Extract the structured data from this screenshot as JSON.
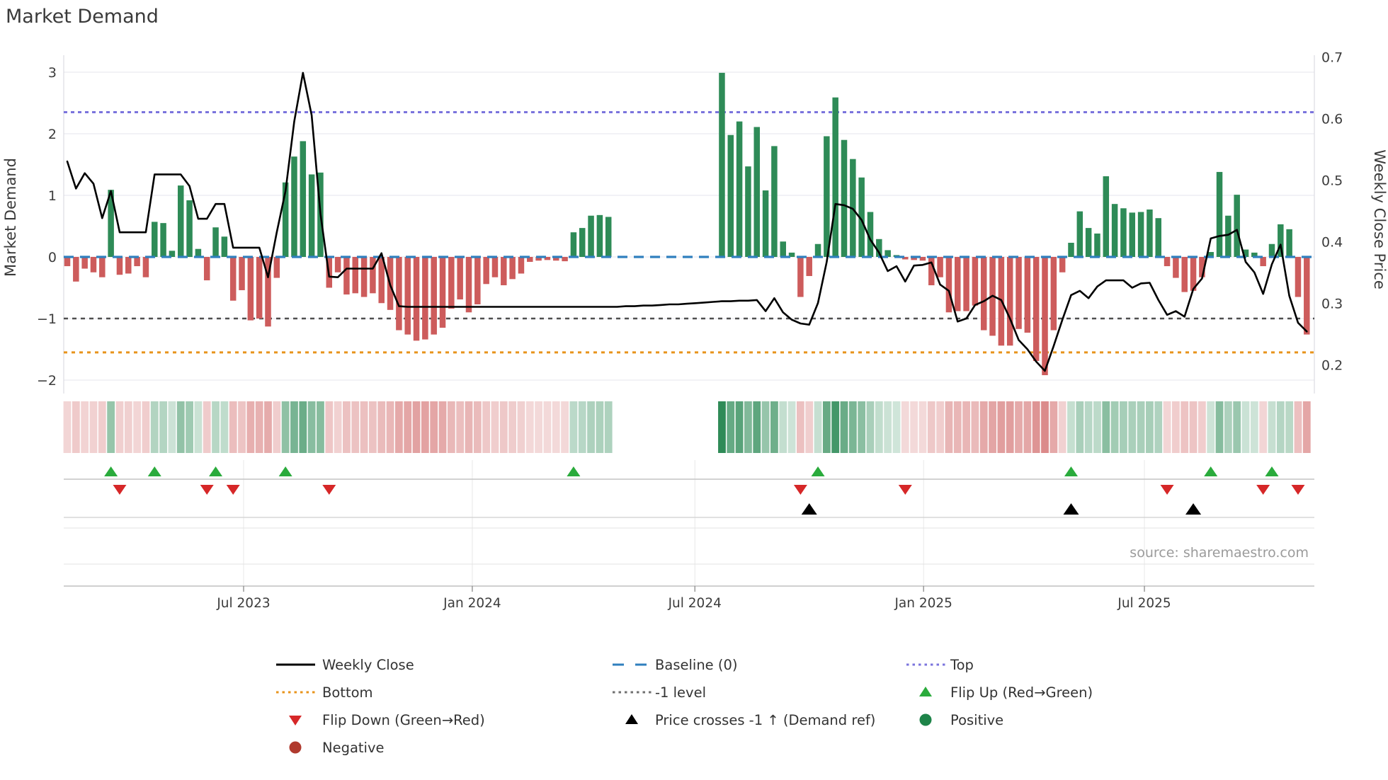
{
  "title": "Market Demand",
  "source": "source: sharemaestro.com",
  "axes": {
    "left": {
      "label": "Market Demand",
      "ticks": [
        3,
        2,
        1,
        0,
        -1,
        -2
      ]
    },
    "right": {
      "label": "Weekly Close Price",
      "ticks": [
        0.7,
        0.6,
        0.5,
        0.4,
        0.3,
        0.2
      ]
    },
    "x": {
      "ticks": [
        {
          "label": "Jul 2023",
          "week": 20.2
        },
        {
          "label": "Jan 2024",
          "week": 46.4
        },
        {
          "label": "Jul 2024",
          "week": 71.9
        },
        {
          "label": "Jan 2025",
          "week": 98.1
        },
        {
          "label": "Jul 2025",
          "week": 123.4
        }
      ]
    }
  },
  "chart_data": {
    "type": "combo-bar-line",
    "x_unit": "week_index",
    "weeks": 143,
    "grid": "horizontal-only",
    "series": [
      {
        "name": "Market Demand",
        "type": "bar",
        "axis": "left",
        "values": [
          -0.15,
          -0.4,
          -0.19,
          -0.25,
          -0.33,
          1.09,
          -0.29,
          -0.27,
          -0.15,
          -0.33,
          0.57,
          0.55,
          0.1,
          1.16,
          0.92,
          0.13,
          -0.38,
          0.48,
          0.33,
          -0.71,
          -0.54,
          -1.03,
          -1.0,
          -1.13,
          -0.34,
          1.21,
          1.63,
          1.88,
          1.34,
          1.37,
          -0.5,
          -0.25,
          -0.61,
          -0.59,
          -0.65,
          -0.59,
          -0.75,
          -0.86,
          -1.19,
          -1.26,
          -1.36,
          -1.34,
          -1.26,
          -1.15,
          -0.84,
          -0.69,
          -0.9,
          -0.77,
          -0.44,
          -0.33,
          -0.46,
          -0.36,
          -0.27,
          -0.08,
          -0.06,
          -0.05,
          -0.06,
          -0.07,
          0.4,
          0.47,
          0.67,
          0.68,
          0.65,
          null,
          null,
          null,
          null,
          null,
          null,
          null,
          null,
          null,
          null,
          null,
          null,
          2.99,
          1.98,
          2.2,
          1.47,
          2.11,
          1.08,
          1.8,
          0.25,
          0.07,
          -0.65,
          -0.31,
          0.21,
          1.96,
          2.59,
          1.9,
          1.59,
          1.29,
          0.73,
          0.29,
          0.11,
          0.03,
          -0.04,
          -0.05,
          -0.06,
          -0.46,
          -0.33,
          -0.9,
          -0.88,
          -0.88,
          -0.79,
          -1.19,
          -1.28,
          -1.44,
          -1.44,
          -1.17,
          -1.23,
          -1.69,
          -1.92,
          -1.19,
          -0.25,
          0.23,
          0.74,
          0.47,
          0.38,
          1.31,
          0.86,
          0.79,
          0.72,
          0.73,
          0.77,
          0.63,
          -0.15,
          -0.34,
          -0.57,
          -0.55,
          -0.33,
          0.08,
          1.38,
          0.67,
          1.01,
          0.12,
          0.07,
          -0.15,
          0.21,
          0.53,
          0.45,
          -0.65,
          -1.26
        ]
      },
      {
        "name": "Weekly Close",
        "type": "line",
        "axis": "right",
        "values": [
          0.53,
          0.486,
          0.511,
          0.494,
          0.438,
          0.482,
          0.415,
          0.415,
          0.415,
          0.415,
          0.509,
          0.509,
          0.509,
          0.509,
          0.49,
          0.437,
          0.437,
          0.461,
          0.461,
          0.39,
          0.39,
          0.39,
          0.39,
          0.342,
          0.415,
          0.482,
          0.595,
          0.674,
          0.605,
          0.445,
          0.343,
          0.342,
          0.356,
          0.356,
          0.356,
          0.356,
          0.381,
          0.329,
          0.295,
          0.294,
          0.294,
          0.294,
          0.294,
          0.294,
          0.294,
          0.294,
          0.294,
          0.294,
          0.294,
          0.294,
          0.294,
          0.294,
          0.294,
          0.294,
          0.294,
          0.294,
          0.294,
          0.294,
          0.294,
          0.294,
          0.294,
          0.294,
          0.294,
          0.294,
          0.295,
          0.295,
          0.296,
          0.296,
          0.297,
          0.298,
          0.298,
          0.299,
          0.3,
          0.301,
          0.302,
          0.303,
          0.303,
          0.304,
          0.304,
          0.305,
          0.287,
          0.308,
          0.285,
          0.273,
          0.267,
          0.265,
          0.3,
          0.367,
          0.461,
          0.459,
          0.453,
          0.435,
          0.403,
          0.382,
          0.352,
          0.36,
          0.335,
          0.361,
          0.362,
          0.366,
          0.33,
          0.32,
          0.27,
          0.275,
          0.297,
          0.303,
          0.312,
          0.305,
          0.275,
          0.24,
          0.225,
          0.205,
          0.19,
          0.23,
          0.273,
          0.313,
          0.32,
          0.308,
          0.327,
          0.337,
          0.337,
          0.337,
          0.325,
          0.332,
          0.333,
          0.305,
          0.281,
          0.287,
          0.278,
          0.323,
          0.34,
          0.405,
          0.409,
          0.411,
          0.419,
          0.367,
          0.35,
          0.315,
          0.363,
          0.395,
          0.312,
          0.268,
          0.254
        ]
      }
    ],
    "reference_lines": [
      {
        "name": "Baseline (0)",
        "axis": "left",
        "value": 0,
        "style": "dashed",
        "color": "#2f7fbe"
      },
      {
        "name": "Top",
        "axis": "right",
        "value": 0.61,
        "style": "dotted",
        "color": "#7b74dd"
      },
      {
        "name": "-1 level",
        "axis": "left",
        "value": -1,
        "style": "dotted",
        "color": "#4f4f4f"
      },
      {
        "name": "Bottom",
        "axis": "right",
        "value": 0.22,
        "style": "dotted",
        "color": "#e8941c"
      }
    ],
    "markers": {
      "flip_up": {
        "label": "Flip Up (Red→Green)",
        "color": "#2aab3c",
        "weeks": [
          5,
          10,
          17,
          25,
          58,
          86,
          115,
          131,
          138
        ]
      },
      "flip_down": {
        "label": "Flip Down (Green→Red)",
        "color": "#d62728",
        "weeks": [
          6,
          16,
          19,
          30,
          84,
          96,
          126,
          137,
          141
        ]
      },
      "price_cross": {
        "label": "Price crosses -1 ↑ (Demand ref)",
        "color": "#000000",
        "weeks": [
          85,
          115,
          129
        ]
      }
    },
    "heatmap": {
      "description": "weekly demand intensity strip, color derived from bar sign and magnitude",
      "positive_color": "#2e8b57",
      "negative_color": "#cd5c5c"
    },
    "colors": {
      "positive_bar": "#2e8b57",
      "negative_bar": "#cd5c5c",
      "price_line": "#000000"
    }
  },
  "legend": {
    "items": [
      {
        "label": "Weekly Close",
        "swatch": "line",
        "color": "#000000",
        "col": 0
      },
      {
        "label": "Bottom",
        "swatch": "dotted",
        "color": "#e8941c",
        "col": 0
      },
      {
        "label": "Flip Down (Green→Red)",
        "swatch": "triangle-down",
        "color": "#d62728",
        "col": 0
      },
      {
        "label": "Negative",
        "swatch": "circle",
        "color": "#b03a2e",
        "col": 0
      },
      {
        "label": "Baseline (0)",
        "swatch": "dashed",
        "color": "#2f7fbe",
        "col": 1
      },
      {
        "label": "-1 level",
        "swatch": "dotted",
        "color": "#707070",
        "col": 1
      },
      {
        "label": "Price crosses -1 ↑ (Demand ref)",
        "swatch": "triangle-up",
        "color": "#000000",
        "col": 1
      },
      {
        "label": "Top",
        "swatch": "dotted",
        "color": "#7b74dd",
        "col": 2
      },
      {
        "label": "Flip Up (Red→Green)",
        "swatch": "triangle-up",
        "color": "#2aab3c",
        "col": 2
      },
      {
        "label": "Positive",
        "swatch": "circle",
        "color": "#1e8449",
        "col": 2
      }
    ]
  }
}
